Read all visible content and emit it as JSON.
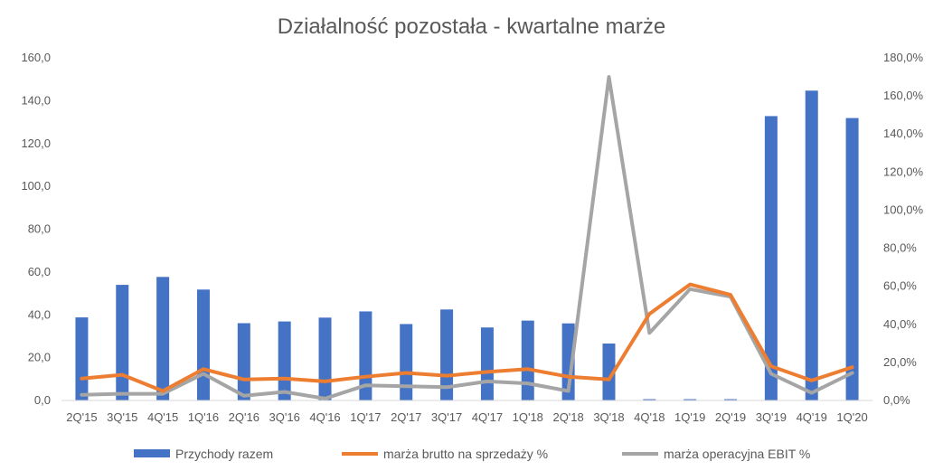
{
  "chart_data": {
    "type": "bar",
    "title": "Działalność pozostała - kwartalne marże",
    "categories": [
      "2Q'15",
      "3Q'15",
      "4Q'15",
      "1Q'16",
      "2Q'16",
      "3Q'16",
      "4Q'16",
      "1Q'17",
      "2Q'17",
      "3Q'17",
      "4Q'17",
      "1Q'18",
      "2Q'18",
      "3Q'18",
      "4Q'18",
      "1Q'19",
      "2Q'19",
      "3Q'19",
      "4Q'19",
      "1Q'20"
    ],
    "y_left": {
      "ylim": [
        0,
        160
      ],
      "ticks": [
        "0,0",
        "20,0",
        "40,0",
        "60,0",
        "80,0",
        "100,0",
        "120,0",
        "140,0",
        "160,0"
      ]
    },
    "y_right": {
      "ylim": [
        0,
        180
      ],
      "ticks": [
        "0,0%",
        "20,0%",
        "40,0%",
        "60,0%",
        "80,0%",
        "100,0%",
        "120,0%",
        "140,0%",
        "160,0%",
        "180,0%"
      ]
    },
    "grid": false,
    "legend_position": "bottom",
    "series": [
      {
        "name": "Przychody razem",
        "type": "bar",
        "axis": "left",
        "color": "#4472C4",
        "values": [
          38.8,
          54.0,
          57.7,
          51.8,
          36.1,
          36.9,
          38.7,
          41.6,
          35.7,
          42.5,
          34.1,
          37.3,
          36.0,
          26.6,
          0.6,
          0.6,
          0.6,
          132.8,
          144.7,
          131.9
        ]
      },
      {
        "name": "marża brutto na sprzedaży %",
        "type": "line",
        "axis": "right",
        "color": "#ED7D31",
        "values": [
          11.5,
          13.5,
          5.0,
          16.5,
          11.0,
          11.5,
          10.0,
          12.5,
          14.5,
          13.0,
          15.0,
          16.5,
          12.5,
          11.0,
          45.5,
          61.0,
          55.5,
          18.0,
          10.5,
          17.5
        ]
      },
      {
        "name": "marża operacyjna EBIT %",
        "type": "line",
        "axis": "right",
        "color": "#A5A5A5",
        "values": [
          3.0,
          3.5,
          3.5,
          14.0,
          2.5,
          4.5,
          1.0,
          8.0,
          7.5,
          7.0,
          10.0,
          9.0,
          5.0,
          170.0,
          35.5,
          58.5,
          54.5,
          14.0,
          4.0,
          14.5
        ]
      }
    ]
  }
}
